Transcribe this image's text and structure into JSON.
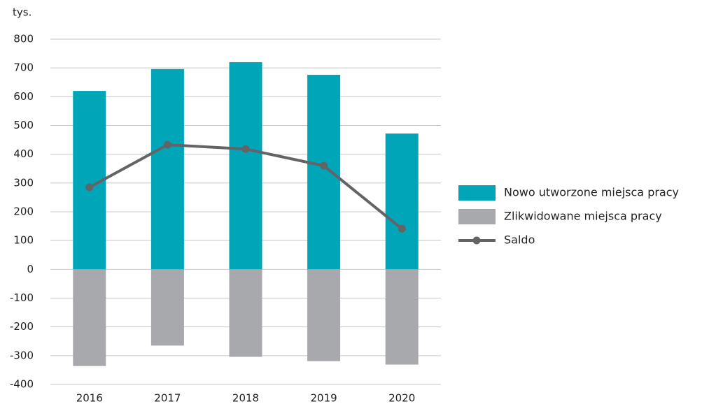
{
  "chart_data": {
    "type": "bar",
    "y_label": "tys.",
    "categories": [
      "2016",
      "2017",
      "2018",
      "2019",
      "2020"
    ],
    "series": [
      {
        "name": "Nowo utworzone miejsca pracy",
        "type": "bar",
        "color": "#00a6b8",
        "values": [
          620,
          696,
          720,
          676,
          472
        ]
      },
      {
        "name": "Zlikwidowane miejsca pracy",
        "type": "bar",
        "color": "#a7a9ac",
        "values": [
          -336,
          -265,
          -304,
          -319,
          -331
        ]
      },
      {
        "name": "Saldo",
        "type": "line",
        "color": "#636466",
        "values": [
          285,
          433,
          418,
          360,
          141
        ]
      }
    ],
    "ylim": [
      -400,
      800
    ],
    "yticks": [
      -400,
      -300,
      -200,
      -100,
      0,
      100,
      200,
      300,
      400,
      500,
      600,
      700,
      800
    ],
    "grid": true,
    "legend": "right"
  }
}
